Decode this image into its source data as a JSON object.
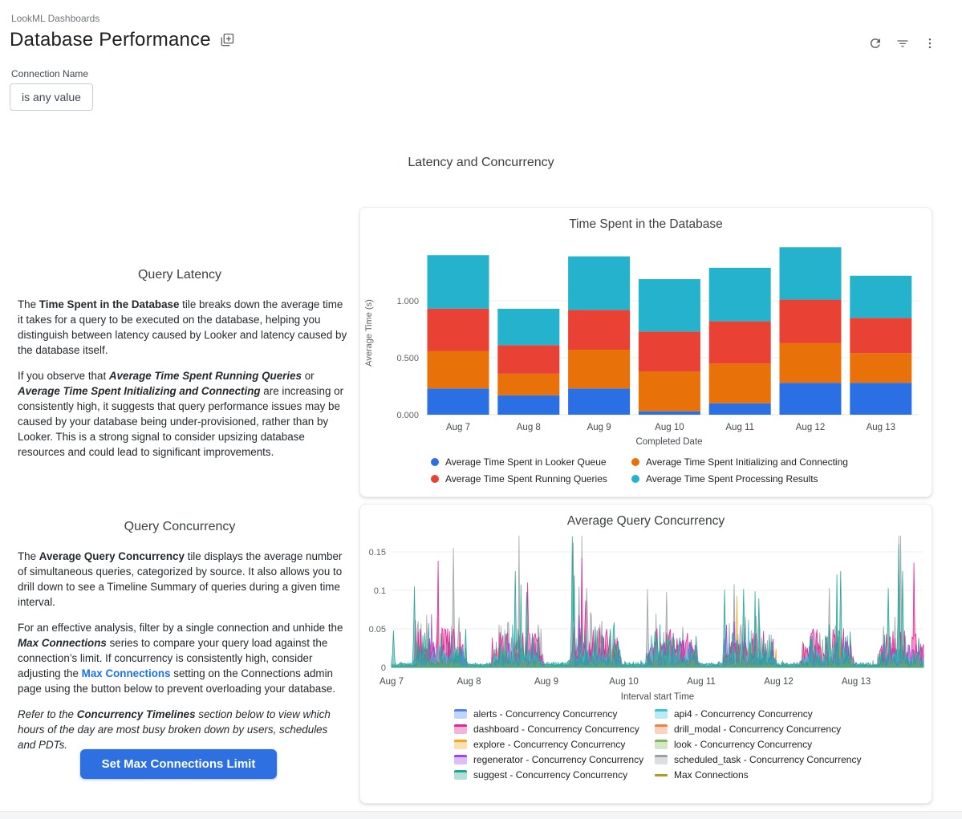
{
  "header": {
    "breadcrumb": "LookML Dashboards",
    "title": "Database Performance",
    "icons": [
      "copy-dashboard",
      "refresh",
      "filter",
      "kebab-menu"
    ]
  },
  "filter": {
    "label": "Connection Name",
    "value": "is any value"
  },
  "section_title": "Latency and Concurrency",
  "tiles": {
    "query_latency": {
      "title": "Query Latency",
      "paragraphs": [
        [
          {
            "t": "The "
          },
          {
            "t": "Time Spent in the Database",
            "b": 1
          },
          {
            "t": " tile breaks down the average time it takes for a query to be executed on the database, helping you distinguish between latency caused by Looker and latency caused by the database itself."
          }
        ],
        [
          {
            "t": "If you observe that "
          },
          {
            "t": "Average Time Spent Running Queries",
            "b": 1,
            "i": 1
          },
          {
            "t": " or "
          },
          {
            "t": "Average Time Spent Initializing and Connecting",
            "b": 1,
            "i": 1
          },
          {
            "t": " are increasing or consistently high, it suggests that query performance issues may be caused by your database being under-provisioned, rather than by Looker. This is a strong signal to consider upsizing database resources and could lead to significant improvements."
          }
        ]
      ]
    },
    "query_concurrency": {
      "title": "Query Concurrency",
      "paragraphs": [
        [
          {
            "t": "The "
          },
          {
            "t": "Average Query Concurrency",
            "b": 1
          },
          {
            "t": " tile displays the average number of simultaneous queries, categorized by source. It also allows you to drill down to see a Timeline Summary of queries during a given time interval."
          }
        ],
        [
          {
            "t": "For an effective analysis, filter by a single connection and unhide the "
          },
          {
            "t": "Max Connections",
            "b": 1,
            "i": 1
          },
          {
            "t": " series to compare your query load against the connection’s limit. If concurrency is consistently high, consider adjusting the "
          },
          {
            "t": "Max Connections",
            "link": 1
          },
          {
            "t": " setting on the Connections admin page using the button below to prevent overloading your database."
          }
        ],
        [
          {
            "t": "Refer to the ",
            "i": 1
          },
          {
            "t": "Concurrency Timelines",
            "b": 1,
            "i": 1
          },
          {
            "t": " section below to view which hours of the day are most busy broken down by users, schedules and PDTs.",
            "i": 1
          }
        ]
      ]
    }
  },
  "actions": {
    "set_max_connections": "Set Max Connections Limit"
  },
  "chart_data": [
    {
      "type": "bar",
      "stacked": true,
      "title": "Time Spent in the Database",
      "categories": [
        "Aug 7",
        "Aug 8",
        "Aug 9",
        "Aug 10",
        "Aug 11",
        "Aug 12",
        "Aug 13"
      ],
      "xlabel": "Completed Date",
      "ylabel": "Average Time (s)",
      "ylim": [
        0,
        1.55
      ],
      "grid": true,
      "legend_position": "bottom",
      "yticks": [
        {
          "v": 0,
          "label": "0.000"
        },
        {
          "v": 0.5,
          "label": "0.500"
        },
        {
          "v": 1.0,
          "label": "1.000"
        }
      ],
      "series": [
        {
          "name": "Average Time Spent in Looker Queue",
          "color": "#2b6fe4",
          "values": [
            0.23,
            0.17,
            0.23,
            0.03,
            0.1,
            0.28,
            0.28
          ]
        },
        {
          "name": "Average Time Spent Initializing and Connecting",
          "color": "#e8710a",
          "values": [
            0.33,
            0.19,
            0.34,
            0.35,
            0.35,
            0.35,
            0.26
          ]
        },
        {
          "name": "Average Time Spent Running Queries",
          "color": "#e94235",
          "values": [
            0.37,
            0.25,
            0.35,
            0.35,
            0.37,
            0.38,
            0.31
          ]
        },
        {
          "name": "Average Time Spent Processing Results",
          "color": "#25b2cc",
          "values": [
            0.47,
            0.32,
            0.47,
            0.46,
            0.47,
            0.46,
            0.37
          ]
        }
      ]
    },
    {
      "type": "area",
      "title": "Average Query Concurrency",
      "xlabel": "Interval start Time",
      "x_ticks": [
        "Aug 7",
        "Aug 8",
        "Aug 9",
        "Aug 10",
        "Aug 11",
        "Aug 12",
        "Aug 13"
      ],
      "x_span_days": 6.87,
      "ylim": [
        0,
        0.175
      ],
      "grid": true,
      "legend_position": "bottom",
      "yticks": [
        {
          "v": 0,
          "label": "0"
        },
        {
          "v": 0.05,
          "label": "0.05"
        },
        {
          "v": 0.1,
          "label": "0.1"
        },
        {
          "v": 0.15,
          "label": "0.15"
        }
      ],
      "day_mult": [
        1,
        0.9,
        1.05,
        1,
        0.95,
        1,
        0.95
      ],
      "series": [
        {
          "name": "alerts - Concurrency Concurrency",
          "color": "#4e86ec",
          "amp": 0.014,
          "exp": 2.2,
          "spike_p": 0.006,
          "base": 0.001,
          "seed": 101
        },
        {
          "name": "api4 - Concurrency Concurrency",
          "color": "#40c4d4",
          "amp": 0.022,
          "exp": 2.0,
          "spike_p": 0.008,
          "base": 0.004,
          "seed": 202
        },
        {
          "name": "dashboard - Concurrency Concurrency",
          "color": "#e52592",
          "amp": 0.05,
          "exp": 1.25,
          "spike_p": 0.01,
          "base": 0.001,
          "seed": 303
        },
        {
          "name": "drill_modal - Concurrency Concurrency",
          "color": "#f08145",
          "amp": 0.01,
          "exp": 3.0,
          "spike_p": 0.004,
          "base": 0.0005,
          "seed": 404
        },
        {
          "name": "explore - Concurrency Concurrency",
          "color": "#f4a623",
          "amp": 0.035,
          "exp": 5.0,
          "spike_p": 0.01,
          "base": 0.0005,
          "seed": 505
        },
        {
          "name": "look - Concurrency Concurrency",
          "color": "#7fb95a",
          "amp": 0.006,
          "exp": 2.5,
          "spike_p": 0.002,
          "base": 0.001,
          "seed": 606
        },
        {
          "name": "regenerator - Concurrency Concurrency",
          "color": "#9d45f2",
          "amp": 0.034,
          "exp": 2.2,
          "spike_p": 0.012,
          "base": 0.001,
          "seed": 707
        },
        {
          "name": "scheduled_task - Concurrency Concurrency",
          "color": "#9aa0a6",
          "amp": 0.07,
          "exp": 3.2,
          "spike_p": 0.03,
          "base": 0.0005,
          "seed": 808
        },
        {
          "name": "suggest - Concurrency Concurrency",
          "color": "#23a393",
          "amp": 0.055,
          "exp": 3.0,
          "spike_p": 0.022,
          "base": 0.003,
          "seed": 909
        },
        {
          "name": "Max Connections",
          "color": "#ab9d20",
          "hidden": true
        }
      ],
      "draw_order": [
        7,
        4,
        6,
        2,
        1,
        0,
        3,
        5,
        8
      ],
      "spikes": [
        {
          "s": 8,
          "d": 0.03,
          "v": 0.048
        },
        {
          "s": 8,
          "d": 0.3,
          "v": 0.105
        },
        {
          "s": 7,
          "d": 0.8,
          "v": 0.155
        },
        {
          "s": 8,
          "d": 1.6,
          "v": 0.125
        },
        {
          "s": 8,
          "d": 1.75,
          "v": 0.098
        },
        {
          "s": 8,
          "d": 2.33,
          "v": 0.17
        },
        {
          "s": 7,
          "d": 2.42,
          "v": 0.105
        },
        {
          "s": 7,
          "d": 2.52,
          "v": 0.103
        },
        {
          "s": 7,
          "d": 3.3,
          "v": 0.102
        },
        {
          "s": 7,
          "d": 3.55,
          "v": 0.098
        },
        {
          "s": 8,
          "d": 4.3,
          "v": 0.101
        },
        {
          "s": 7,
          "d": 4.42,
          "v": 0.108
        },
        {
          "s": 8,
          "d": 4.55,
          "v": 0.102
        },
        {
          "s": 7,
          "d": 5.65,
          "v": 0.103
        },
        {
          "s": 8,
          "d": 5.8,
          "v": 0.125
        },
        {
          "s": 8,
          "d": 6.42,
          "v": 0.103
        },
        {
          "s": 8,
          "d": 6.55,
          "v": 0.16
        },
        {
          "s": 8,
          "d": 6.6,
          "v": 0.125
        }
      ]
    }
  ]
}
